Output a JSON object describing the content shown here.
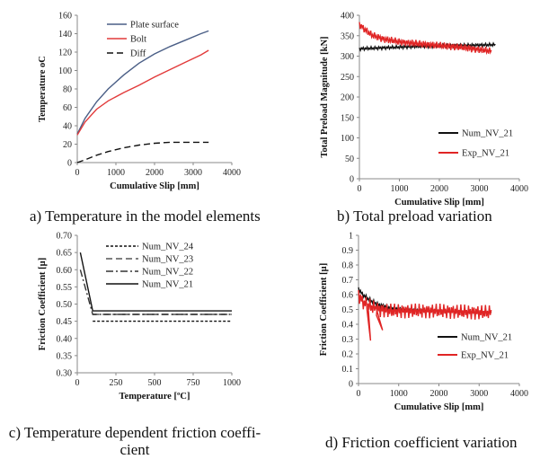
{
  "chart_data": [
    {
      "type": "line",
      "panel": "a",
      "title": "",
      "xlabel": "Cumulative Slip [mm]",
      "ylabel": "Temperature oC",
      "xlim": [
        0,
        4000
      ],
      "ylim": [
        0,
        160
      ],
      "xticks": [
        0,
        1000,
        2000,
        3000,
        4000
      ],
      "yticks": [
        0,
        20,
        40,
        60,
        80,
        100,
        120,
        140,
        160
      ],
      "legend": "top-left",
      "grid": false,
      "series": [
        {
          "name": "Plate surface",
          "color": "#4a5e86",
          "dash": "solid",
          "x": [
            0,
            200,
            500,
            800,
            1200,
            1600,
            2000,
            2400,
            2800,
            3200,
            3400
          ],
          "y": [
            31,
            48,
            66,
            80,
            95,
            108,
            118,
            126,
            133,
            140,
            143
          ]
        },
        {
          "name": "Bolt",
          "color": "#e23a3a",
          "dash": "solid",
          "x": [
            0,
            200,
            500,
            800,
            1200,
            1600,
            2000,
            2400,
            2800,
            3200,
            3400
          ],
          "y": [
            30,
            44,
            58,
            67,
            76,
            84,
            93,
            101,
            109,
            117,
            122
          ]
        },
        {
          "name": "Diff",
          "color": "#111111",
          "dash": "dashed",
          "x": [
            0,
            200,
            500,
            800,
            1200,
            1600,
            2000,
            2400,
            2800,
            3200,
            3400
          ],
          "y": [
            0,
            3,
            8,
            12,
            16,
            19,
            21,
            22,
            22,
            22,
            22
          ]
        }
      ]
    },
    {
      "type": "line",
      "panel": "b",
      "title": "",
      "xlabel": "Cumulative Slip [mm]",
      "ylabel": "Total Preload Magnitude [kN]",
      "xlim": [
        0,
        4000
      ],
      "ylim": [
        0,
        400
      ],
      "xticks": [
        0,
        1000,
        2000,
        3000,
        4000
      ],
      "yticks": [
        0,
        50,
        100,
        150,
        200,
        250,
        300,
        350,
        400
      ],
      "legend": "bottom-right",
      "grid": false,
      "series": [
        {
          "name": "Num_NV_21",
          "color": "#111111",
          "dash": "solid",
          "x": [
            0,
            500,
            1000,
            1500,
            2000,
            2500,
            3000,
            3400
          ],
          "y": [
            318,
            320,
            322,
            324,
            325,
            326,
            327,
            328
          ]
        },
        {
          "name": "Exp_NV_21",
          "color": "#e02525",
          "dash": "solid",
          "x": [
            0,
            100,
            300,
            600,
            1000,
            1500,
            2000,
            2500,
            3000,
            3300
          ],
          "y": [
            378,
            368,
            352,
            342,
            335,
            330,
            326,
            322,
            316,
            312
          ]
        }
      ]
    },
    {
      "type": "line",
      "panel": "c",
      "title": "",
      "xlabel": "Temperature [ºC]",
      "ylabel": "Friction Coefficient [µ]",
      "xlim": [
        0,
        1000
      ],
      "ylim": [
        0.3,
        0.7
      ],
      "xticks": [
        0,
        250,
        500,
        750,
        1000
      ],
      "xticklabels": [
        "0",
        "250",
        "500",
        "750",
        "1000"
      ],
      "yticks": [
        0.3,
        0.35,
        0.4,
        0.45,
        0.5,
        0.55,
        0.6,
        0.65,
        0.7
      ],
      "yticklabels": [
        "0.30",
        "0.35",
        "0.40",
        "0.45",
        "0.50",
        "0.55",
        "0.60",
        "0.65",
        "0.70"
      ],
      "legend": "top-right",
      "grid": false,
      "series": [
        {
          "name": "Num_NV_24",
          "color": "#111111",
          "dash": "dotted",
          "x": [
            100,
            1000
          ],
          "y": [
            0.45,
            0.45
          ]
        },
        {
          "name": "Num_NV_23",
          "color": "#555555",
          "dash": "dashed",
          "x": [
            100,
            1000
          ],
          "y": [
            0.47,
            0.47
          ]
        },
        {
          "name": "Num_NV_22",
          "color": "#333333",
          "dash": "dashdot",
          "x": [
            20,
            100,
            1000
          ],
          "y": [
            0.6,
            0.47,
            0.47
          ]
        },
        {
          "name": "Num_NV_21",
          "color": "#111111",
          "dash": "solid",
          "x": [
            20,
            100,
            1000
          ],
          "y": [
            0.65,
            0.48,
            0.48
          ]
        }
      ]
    },
    {
      "type": "line",
      "panel": "d",
      "title": "",
      "xlabel": "Cumulative Slip [mm]",
      "ylabel": "Friction Coefficient [µ]",
      "xlim": [
        0,
        4000
      ],
      "ylim": [
        0,
        1
      ],
      "xticks": [
        0,
        1000,
        2000,
        3000,
        4000
      ],
      "yticks": [
        0,
        0.1,
        0.2,
        0.3,
        0.4,
        0.5,
        0.6,
        0.7,
        0.8,
        0.9,
        1
      ],
      "legend": "bottom-right",
      "grid": false,
      "series": [
        {
          "name": "Num_NV_21",
          "color": "#111111",
          "dash": "solid",
          "x": [
            0,
            100,
            300,
            500,
            800,
            1200,
            2000,
            3000,
            3300
          ],
          "y": [
            0.64,
            0.6,
            0.56,
            0.53,
            0.51,
            0.5,
            0.49,
            0.48,
            0.48
          ]
        },
        {
          "name": "Exp_NV_21",
          "color": "#e02525",
          "dash": "solid",
          "x": [
            0,
            100,
            300,
            500,
            800,
            1200,
            2000,
            3000,
            3300
          ],
          "y": [
            0.6,
            0.55,
            0.52,
            0.5,
            0.49,
            0.49,
            0.49,
            0.48,
            0.48
          ]
        }
      ]
    }
  ],
  "captions": {
    "a": "a) Temperature in the model elements",
    "b": "b) Total preload variation",
    "c": "c) Temperature dependent friction coeffi-\ncient",
    "d": "d) Friction coefficient variation"
  }
}
